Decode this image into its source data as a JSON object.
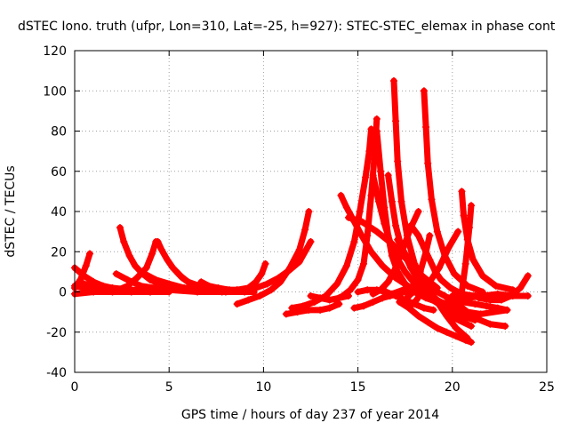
{
  "chart_data": {
    "type": "scatter",
    "title": "dSTEC Iono. truth (ufpr, Lon=310, Lat=-25, h=927): STEC-STEC_elemax in phase cont",
    "xlabel": "GPS time / hours of day 237 of year 2014",
    "ylabel": "dSTEC  / TECUs",
    "xlim": [
      0,
      25
    ],
    "ylim": [
      -40,
      120
    ],
    "xticks": [
      "0",
      "5",
      "10",
      "15",
      "20",
      "25"
    ],
    "yticks": [
      "-40",
      "-20",
      "0",
      "20",
      "40",
      "60",
      "80",
      "100",
      "120"
    ],
    "grid": true,
    "marker": "+",
    "color": "#ff0000",
    "series": [
      {
        "x": [
          0.0,
          0.3,
          0.6,
          0.8
        ],
        "y": [
          2,
          6,
          13,
          19
        ]
      },
      {
        "x": [
          0.0,
          0.5,
          1.0,
          1.5,
          2.0,
          3.0,
          4.0,
          5.0
        ],
        "y": [
          12,
          8,
          5,
          3,
          2,
          1,
          0,
          0
        ]
      },
      {
        "x": [
          0.0,
          0.5,
          1.0,
          1.5,
          2.0,
          2.5
        ],
        "y": [
          3,
          2,
          2,
          1,
          1,
          1
        ]
      },
      {
        "x": [
          0.0,
          1.0,
          2.0,
          3.0,
          4.0
        ],
        "y": [
          -1,
          0,
          0,
          0,
          0
        ]
      },
      {
        "x": [
          0.5,
          1.5,
          2.5,
          3.5,
          4.5,
          5.5
        ],
        "y": [
          4,
          2,
          1,
          1,
          1,
          1
        ]
      },
      {
        "x": [
          2.4,
          2.6,
          2.9,
          3.2,
          3.6,
          4.0,
          4.5,
          5.0,
          5.5,
          6.0
        ],
        "y": [
          32,
          25,
          18,
          13,
          9,
          6,
          4,
          3,
          2,
          2
        ]
      },
      {
        "x": [
          2.2,
          2.8,
          3.5,
          4.2,
          5.0,
          6.0
        ],
        "y": [
          9,
          6,
          3,
          2,
          1,
          1
        ]
      },
      {
        "x": [
          2.3,
          2.8,
          3.3,
          3.8,
          4.1,
          4.3
        ],
        "y": [
          1,
          3,
          7,
          12,
          19,
          25
        ]
      },
      {
        "x": [
          4.4,
          4.6,
          4.9,
          5.2,
          5.6,
          6.0,
          6.6,
          7.2,
          8.0
        ],
        "y": [
          25,
          21,
          16,
          12,
          8,
          5,
          3,
          2,
          1
        ]
      },
      {
        "x": [
          3.5,
          4.3,
          5.0,
          5.8,
          6.5,
          7.5
        ],
        "y": [
          10,
          6,
          4,
          2,
          2,
          1
        ]
      },
      {
        "x": [
          5.4,
          5.7,
          6.0,
          6.5,
          7.0,
          7.8,
          8.6
        ],
        "y": [
          10,
          7,
          5,
          3,
          2,
          1,
          1
        ]
      },
      {
        "x": [
          6.7,
          7.1,
          7.6,
          8.2,
          8.8
        ],
        "y": [
          5,
          3,
          2,
          1,
          1
        ]
      },
      {
        "x": [
          5.0,
          6.5,
          8.0,
          9.5
        ],
        "y": [
          1,
          0,
          0,
          0
        ]
      },
      {
        "x": [
          7.0,
          7.8,
          8.6,
          9.2,
          9.6,
          9.9,
          10.1
        ],
        "y": [
          1,
          0,
          1,
          2,
          5,
          9,
          14
        ]
      },
      {
        "x": [
          8.6,
          9.2,
          9.8,
          10.4,
          10.9,
          11.4,
          11.9,
          12.2,
          12.4
        ],
        "y": [
          -6,
          -4,
          -2,
          1,
          5,
          12,
          21,
          31,
          40
        ]
      },
      {
        "x": [
          9.0,
          9.6,
          10.2,
          10.8,
          11.4,
          11.9,
          12.2,
          12.5
        ],
        "y": [
          0,
          2,
          4,
          7,
          11,
          15,
          20,
          25
        ]
      },
      {
        "x": [
          11.2,
          11.8,
          12.4,
          13.0,
          13.5,
          14.0
        ],
        "y": [
          -11,
          -10,
          -9,
          -9,
          -8,
          -6
        ]
      },
      {
        "x": [
          11.5,
          12.1,
          12.7,
          13.3,
          13.9,
          14.4,
          14.8,
          15.1,
          15.4,
          15.6,
          15.7
        ],
        "y": [
          -8,
          -7,
          -5,
          -2,
          4,
          13,
          25,
          40,
          57,
          70,
          81
        ]
      },
      {
        "x": [
          12.5,
          13.0,
          13.5,
          14.0,
          14.5
        ],
        "y": [
          -2,
          -3,
          -4,
          -3,
          -2
        ]
      },
      {
        "x": [
          13.8,
          14.2,
          14.6,
          15.0,
          15.3,
          15.5,
          15.7,
          15.9,
          16.0
        ],
        "y": [
          -4,
          -2,
          1,
          6,
          14,
          28,
          48,
          70,
          86
        ]
      },
      {
        "x": [
          14.1,
          14.4,
          14.8,
          15.2,
          15.7,
          16.3,
          17.0,
          17.8
        ],
        "y": [
          48,
          42,
          35,
          28,
          20,
          13,
          7,
          2
        ]
      },
      {
        "x": [
          14.5,
          15.2,
          16.0,
          16.8,
          17.6,
          18.4,
          19.2
        ],
        "y": [
          37,
          35,
          30,
          24,
          16,
          8,
          2
        ]
      },
      {
        "x": [
          15.0,
          15.5,
          16.0,
          16.5,
          17.0,
          17.5,
          18.0,
          18.5,
          19.0
        ],
        "y": [
          0,
          1,
          1,
          0,
          -2,
          -4,
          -6,
          -8,
          -9
        ]
      },
      {
        "x": [
          14.8,
          15.3,
          15.8,
          16.3,
          16.8,
          17.4,
          17.9,
          18.4
        ],
        "y": [
          -8,
          -7,
          -5,
          -3,
          -1,
          1,
          1,
          0
        ]
      },
      {
        "x": [
          16.0,
          16.2,
          16.4,
          16.6,
          16.8,
          17.1,
          17.5,
          18.0,
          18.6,
          19.2,
          20.0
        ],
        "y": [
          80,
          60,
          42,
          28,
          18,
          10,
          4,
          0,
          -3,
          -5,
          -6
        ]
      },
      {
        "x": [
          15.8,
          16.1,
          16.4,
          16.7,
          17.0,
          17.5,
          18.1,
          18.8,
          19.6,
          20.5,
          21.2
        ],
        "y": [
          58,
          45,
          34,
          25,
          18,
          10,
          3,
          -3,
          -8,
          -12,
          -14
        ]
      },
      {
        "x": [
          16.9,
          17.0,
          17.1,
          17.3,
          17.6,
          18.0,
          18.6,
          19.3,
          20.1,
          21.0
        ],
        "y": [
          105,
          85,
          65,
          45,
          28,
          14,
          3,
          -6,
          -13,
          -17
        ]
      },
      {
        "x": [
          16.6,
          16.8,
          17.0,
          17.3,
          17.8,
          18.4,
          19.2,
          20.2,
          21.5,
          22.9
        ],
        "y": [
          58,
          45,
          33,
          22,
          12,
          3,
          -4,
          -9,
          -11,
          -9
        ]
      },
      {
        "x": [
          15.8,
          16.2,
          16.6,
          17.0,
          17.4,
          17.8,
          18.2
        ],
        "y": [
          -1,
          1,
          5,
          12,
          22,
          32,
          40
        ]
      },
      {
        "x": [
          16.3,
          16.7,
          17.1,
          17.5,
          17.9,
          18.3,
          18.6,
          18.8
        ],
        "y": [
          -3,
          -2,
          -1,
          0,
          3,
          10,
          20,
          28
        ]
      },
      {
        "x": [
          17.5,
          17.6,
          17.8,
          18.1,
          18.5,
          19.0,
          19.6,
          20.4,
          21.2,
          22.0,
          22.8
        ],
        "y": [
          -5,
          -3,
          -1,
          1,
          2,
          1,
          -2,
          -7,
          -13,
          -16,
          -17
        ]
      },
      {
        "x": [
          17.1,
          17.5,
          17.9,
          18.3,
          18.7,
          19.2,
          19.7,
          20.2,
          20.8
        ],
        "y": [
          26,
          19,
          12,
          6,
          1,
          -5,
          -12,
          -18,
          -23
        ]
      },
      {
        "x": [
          17.2,
          17.7,
          18.2,
          18.7,
          19.2,
          19.7,
          20.2,
          20.7,
          21.0
        ],
        "y": [
          -5,
          -8,
          -12,
          -15,
          -18,
          -20,
          -22,
          -24,
          -25
        ]
      },
      {
        "x": [
          17.8,
          18.2,
          18.5,
          18.8,
          19.1,
          19.4,
          19.9,
          20.5,
          21.2,
          22.0
        ],
        "y": [
          33,
          28,
          22,
          16,
          10,
          6,
          2,
          -1,
          -2,
          -2
        ]
      },
      {
        "x": [
          18.5,
          18.6,
          18.7,
          18.9,
          19.2,
          19.6,
          20.1,
          20.8,
          21.6
        ],
        "y": [
          100,
          82,
          64,
          46,
          30,
          18,
          9,
          3,
          0
        ]
      },
      {
        "x": [
          17.9,
          18.1,
          18.4,
          18.8,
          19.3,
          19.8,
          20.3
        ],
        "y": [
          -6,
          -4,
          0,
          5,
          12,
          22,
          30
        ]
      },
      {
        "x": [
          20.5,
          20.6,
          20.8,
          21.1,
          21.6,
          22.3,
          23.2
        ],
        "y": [
          50,
          38,
          26,
          16,
          8,
          3,
          1
        ]
      },
      {
        "x": [
          20.3,
          20.5,
          20.7,
          20.9,
          21.0
        ],
        "y": [
          -6,
          0,
          14,
          32,
          43
        ]
      },
      {
        "x": [
          20.0,
          20.8,
          21.6,
          22.4,
          23.2,
          24.0
        ],
        "y": [
          -2,
          -3,
          -2,
          -1,
          -2,
          -2
        ]
      },
      {
        "x": [
          21.4,
          22.0,
          22.6,
          23.1,
          23.6,
          24.0
        ],
        "y": [
          -3,
          -4,
          -4,
          -2,
          2,
          8
        ]
      },
      {
        "x": [
          19.8,
          20.5,
          21.2,
          21.8,
          22.4,
          22.9
        ],
        "y": [
          -3,
          -5,
          -6,
          -7,
          -8,
          -9
        ]
      }
    ]
  }
}
